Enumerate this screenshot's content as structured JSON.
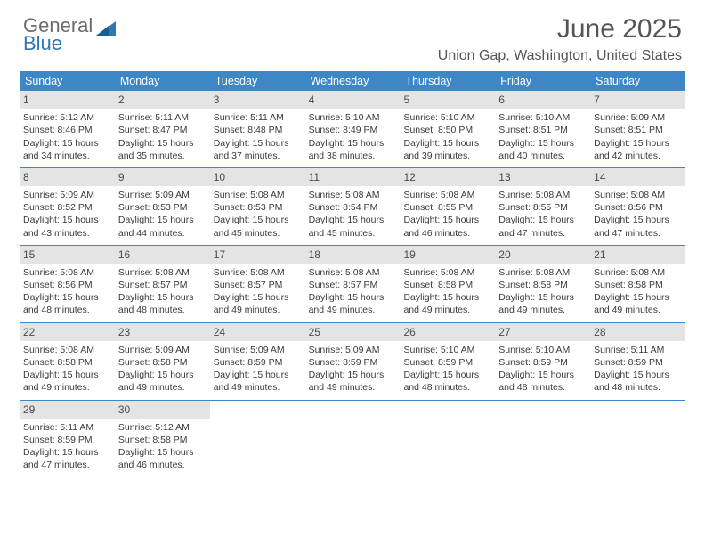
{
  "logo": {
    "word1": "General",
    "word2": "Blue"
  },
  "header": {
    "title": "June 2025",
    "subtitle": "Union Gap, Washington, United States"
  },
  "calendar": {
    "columns": [
      "Sunday",
      "Monday",
      "Tuesday",
      "Wednesday",
      "Thursday",
      "Friday",
      "Saturday"
    ],
    "header_bg": "#3d87c7",
    "header_fg": "#ffffff",
    "daynum_bg": "#e4e4e4",
    "border_color": "#3d87c7",
    "body_fontsize": 10.5,
    "header_fontsize": 12.5,
    "weeks": [
      [
        {
          "n": "1",
          "sr": "5:12 AM",
          "ss": "8:46 PM",
          "dl": "15 hours and 34 minutes."
        },
        {
          "n": "2",
          "sr": "5:11 AM",
          "ss": "8:47 PM",
          "dl": "15 hours and 35 minutes."
        },
        {
          "n": "3",
          "sr": "5:11 AM",
          "ss": "8:48 PM",
          "dl": "15 hours and 37 minutes."
        },
        {
          "n": "4",
          "sr": "5:10 AM",
          "ss": "8:49 PM",
          "dl": "15 hours and 38 minutes."
        },
        {
          "n": "5",
          "sr": "5:10 AM",
          "ss": "8:50 PM",
          "dl": "15 hours and 39 minutes."
        },
        {
          "n": "6",
          "sr": "5:10 AM",
          "ss": "8:51 PM",
          "dl": "15 hours and 40 minutes."
        },
        {
          "n": "7",
          "sr": "5:09 AM",
          "ss": "8:51 PM",
          "dl": "15 hours and 42 minutes."
        }
      ],
      [
        {
          "n": "8",
          "sr": "5:09 AM",
          "ss": "8:52 PM",
          "dl": "15 hours and 43 minutes."
        },
        {
          "n": "9",
          "sr": "5:09 AM",
          "ss": "8:53 PM",
          "dl": "15 hours and 44 minutes."
        },
        {
          "n": "10",
          "sr": "5:08 AM",
          "ss": "8:53 PM",
          "dl": "15 hours and 45 minutes."
        },
        {
          "n": "11",
          "sr": "5:08 AM",
          "ss": "8:54 PM",
          "dl": "15 hours and 45 minutes."
        },
        {
          "n": "12",
          "sr": "5:08 AM",
          "ss": "8:55 PM",
          "dl": "15 hours and 46 minutes."
        },
        {
          "n": "13",
          "sr": "5:08 AM",
          "ss": "8:55 PM",
          "dl": "15 hours and 47 minutes."
        },
        {
          "n": "14",
          "sr": "5:08 AM",
          "ss": "8:56 PM",
          "dl": "15 hours and 47 minutes."
        }
      ],
      [
        {
          "n": "15",
          "sr": "5:08 AM",
          "ss": "8:56 PM",
          "dl": "15 hours and 48 minutes."
        },
        {
          "n": "16",
          "sr": "5:08 AM",
          "ss": "8:57 PM",
          "dl": "15 hours and 48 minutes."
        },
        {
          "n": "17",
          "sr": "5:08 AM",
          "ss": "8:57 PM",
          "dl": "15 hours and 49 minutes."
        },
        {
          "n": "18",
          "sr": "5:08 AM",
          "ss": "8:57 PM",
          "dl": "15 hours and 49 minutes."
        },
        {
          "n": "19",
          "sr": "5:08 AM",
          "ss": "8:58 PM",
          "dl": "15 hours and 49 minutes."
        },
        {
          "n": "20",
          "sr": "5:08 AM",
          "ss": "8:58 PM",
          "dl": "15 hours and 49 minutes."
        },
        {
          "n": "21",
          "sr": "5:08 AM",
          "ss": "8:58 PM",
          "dl": "15 hours and 49 minutes."
        }
      ],
      [
        {
          "n": "22",
          "sr": "5:08 AM",
          "ss": "8:58 PM",
          "dl": "15 hours and 49 minutes."
        },
        {
          "n": "23",
          "sr": "5:09 AM",
          "ss": "8:58 PM",
          "dl": "15 hours and 49 minutes."
        },
        {
          "n": "24",
          "sr": "5:09 AM",
          "ss": "8:59 PM",
          "dl": "15 hours and 49 minutes."
        },
        {
          "n": "25",
          "sr": "5:09 AM",
          "ss": "8:59 PM",
          "dl": "15 hours and 49 minutes."
        },
        {
          "n": "26",
          "sr": "5:10 AM",
          "ss": "8:59 PM",
          "dl": "15 hours and 48 minutes."
        },
        {
          "n": "27",
          "sr": "5:10 AM",
          "ss": "8:59 PM",
          "dl": "15 hours and 48 minutes."
        },
        {
          "n": "28",
          "sr": "5:11 AM",
          "ss": "8:59 PM",
          "dl": "15 hours and 48 minutes."
        }
      ],
      [
        {
          "n": "29",
          "sr": "5:11 AM",
          "ss": "8:59 PM",
          "dl": "15 hours and 47 minutes."
        },
        {
          "n": "30",
          "sr": "5:12 AM",
          "ss": "8:58 PM",
          "dl": "15 hours and 46 minutes."
        },
        null,
        null,
        null,
        null,
        null
      ]
    ]
  }
}
